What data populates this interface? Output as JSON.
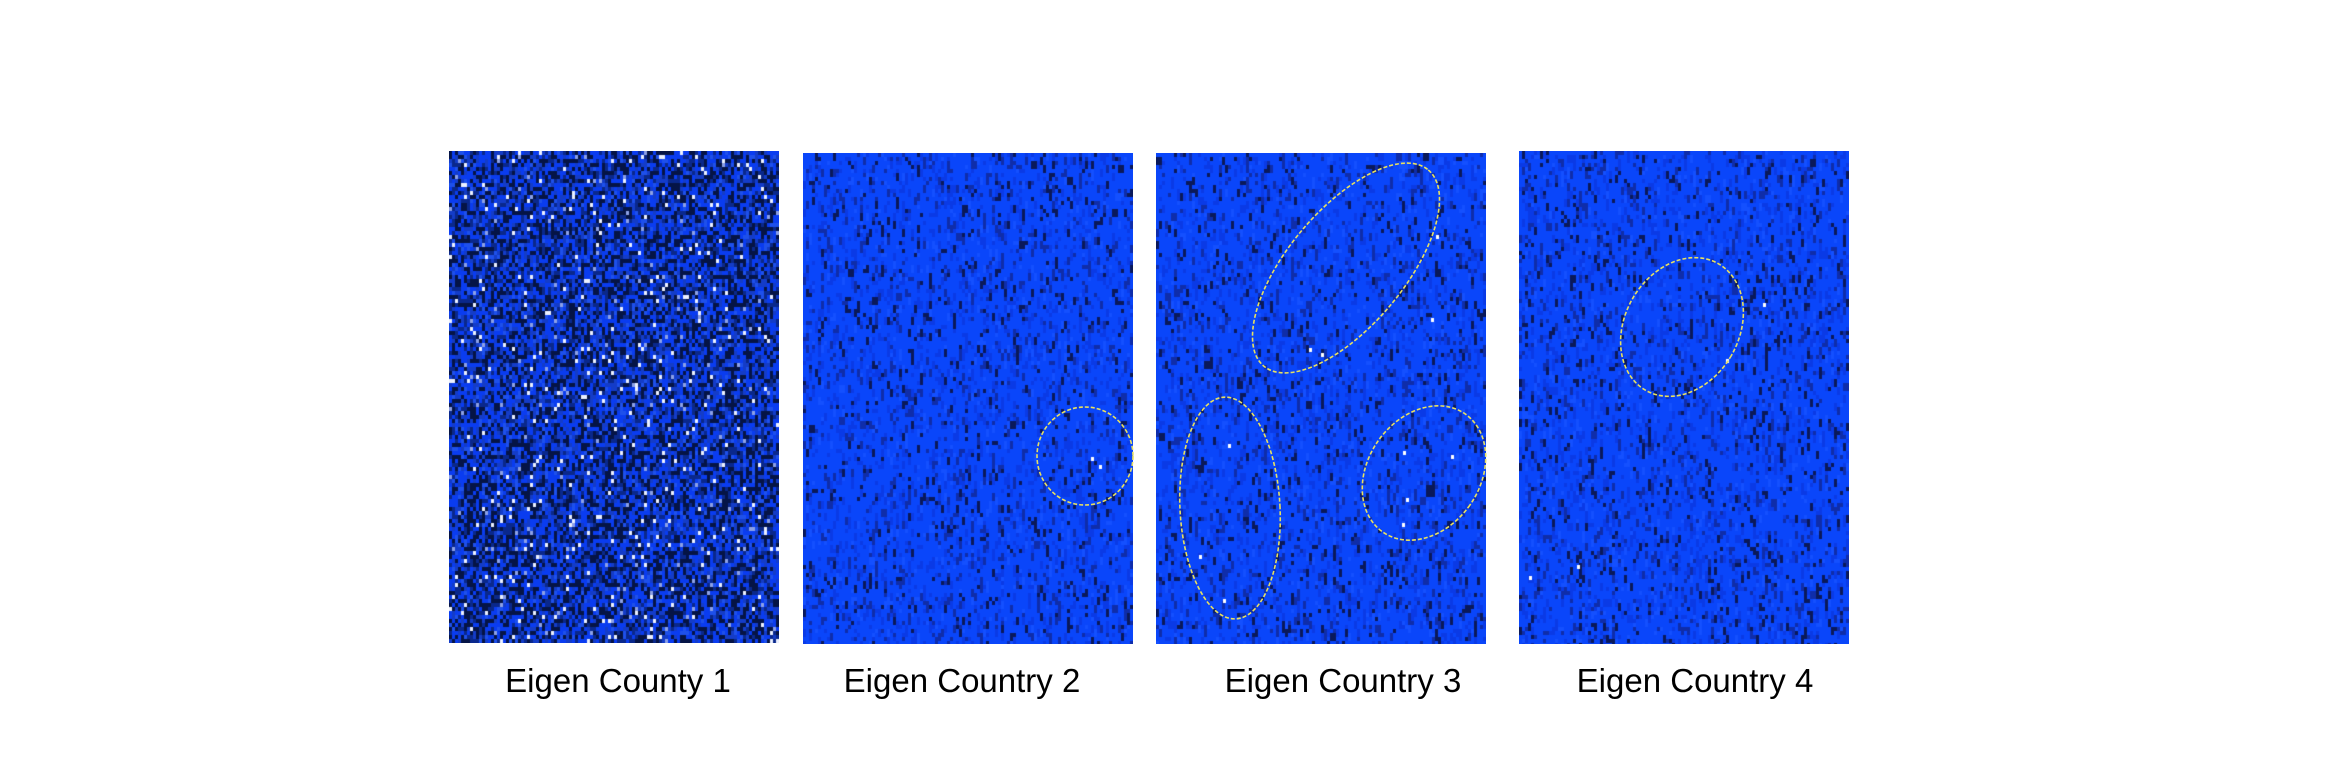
{
  "panels": [
    {
      "caption": "Eigen County 1",
      "base_color": "#0a3cf0",
      "density": "high"
    },
    {
      "caption": "Eigen Country 2",
      "base_color": "#0a46fa",
      "density": "low"
    },
    {
      "caption": "Eigen Country 3",
      "base_color": "#0a46fa",
      "density": "low"
    },
    {
      "caption": "Eigen Country 4",
      "base_color": "#0a46fa",
      "density": "low"
    }
  ],
  "highlight_color": "#e8e060"
}
